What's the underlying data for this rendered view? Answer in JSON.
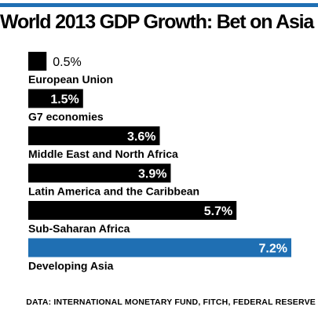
{
  "title": "World 2013 GDP Growth: Bet on Asia",
  "source": "DATA: INTERNATIONAL MONETARY FUND, FITCH, FEDERAL RESERVE",
  "colors": {
    "accent": "#1f6fb3",
    "bar": "#000000",
    "highlight": "#1f6fb3"
  },
  "chart_data": {
    "type": "bar",
    "orientation": "horizontal",
    "title": "World 2013 GDP Growth: Bet on Asia",
    "categories": [
      "European Union",
      "G7 economies",
      "Middle East and North Africa",
      "Latin America and the Caribbean",
      "Sub-Saharan Africa",
      "Developing Asia"
    ],
    "values": [
      0.5,
      1.5,
      3.6,
      3.9,
      5.7,
      7.2
    ],
    "labels": [
      "0.5%",
      "1.5%",
      "3.6%",
      "3.9%",
      "5.7%",
      "7.2%"
    ],
    "highlight_category": "Developing Asia",
    "xlim": [
      0,
      7.2
    ],
    "grid": false,
    "legend": "none"
  }
}
